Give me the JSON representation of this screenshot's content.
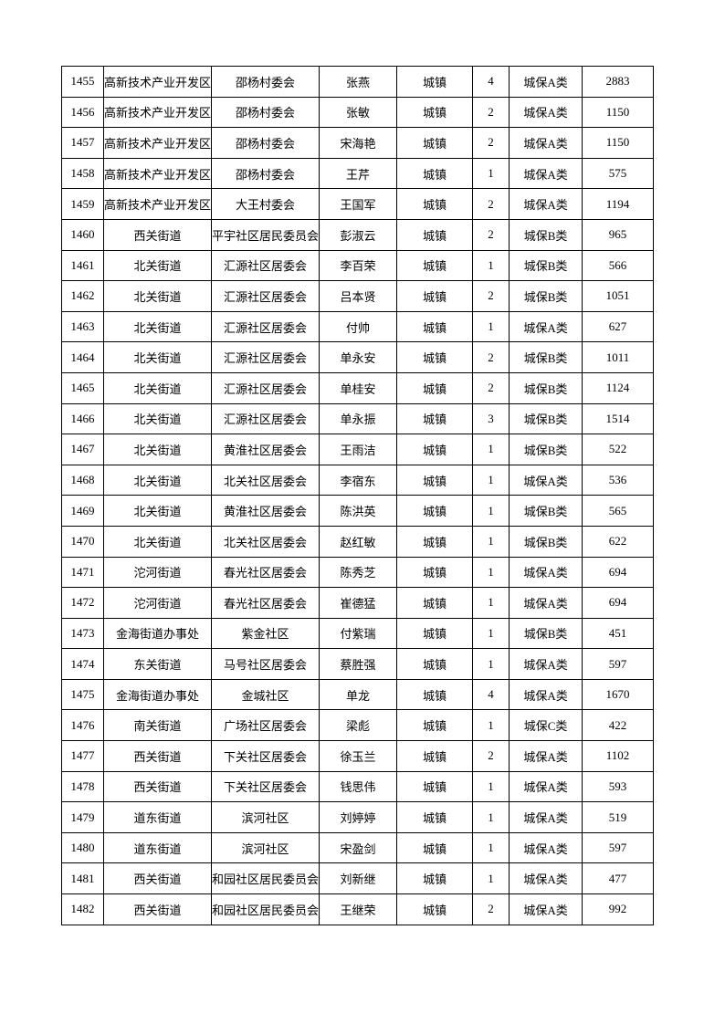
{
  "rows": [
    [
      "1455",
      "高新技术产业开发区",
      "邵杨村委会",
      "张燕",
      "城镇",
      "4",
      "城保A类",
      "2883"
    ],
    [
      "1456",
      "高新技术产业开发区",
      "邵杨村委会",
      "张敏",
      "城镇",
      "2",
      "城保A类",
      "1150"
    ],
    [
      "1457",
      "高新技术产业开发区",
      "邵杨村委会",
      "宋海艳",
      "城镇",
      "2",
      "城保A类",
      "1150"
    ],
    [
      "1458",
      "高新技术产业开发区",
      "邵杨村委会",
      "王芹",
      "城镇",
      "1",
      "城保A类",
      "575"
    ],
    [
      "1459",
      "高新技术产业开发区",
      "大王村委会",
      "王国军",
      "城镇",
      "2",
      "城保A类",
      "1194"
    ],
    [
      "1460",
      "西关街道",
      "平宇社区居民委员会",
      "彭淑云",
      "城镇",
      "2",
      "城保B类",
      "965"
    ],
    [
      "1461",
      "北关街道",
      "汇源社区居委会",
      "李百荣",
      "城镇",
      "1",
      "城保B类",
      "566"
    ],
    [
      "1462",
      "北关街道",
      "汇源社区居委会",
      "吕本贤",
      "城镇",
      "2",
      "城保B类",
      "1051"
    ],
    [
      "1463",
      "北关街道",
      "汇源社区居委会",
      "付帅",
      "城镇",
      "1",
      "城保A类",
      "627"
    ],
    [
      "1464",
      "北关街道",
      "汇源社区居委会",
      "单永安",
      "城镇",
      "2",
      "城保B类",
      "1011"
    ],
    [
      "1465",
      "北关街道",
      "汇源社区居委会",
      "单桂安",
      "城镇",
      "2",
      "城保B类",
      "1124"
    ],
    [
      "1466",
      "北关街道",
      "汇源社区居委会",
      "单永振",
      "城镇",
      "3",
      "城保B类",
      "1514"
    ],
    [
      "1467",
      "北关街道",
      "黄淮社区居委会",
      "王雨洁",
      "城镇",
      "1",
      "城保B类",
      "522"
    ],
    [
      "1468",
      "北关街道",
      "北关社区居委会",
      "李宿东",
      "城镇",
      "1",
      "城保A类",
      "536"
    ],
    [
      "1469",
      "北关街道",
      "黄淮社区居委会",
      "陈洪英",
      "城镇",
      "1",
      "城保B类",
      "565"
    ],
    [
      "1470",
      "北关街道",
      "北关社区居委会",
      "赵红敏",
      "城镇",
      "1",
      "城保B类",
      "622"
    ],
    [
      "1471",
      "沱河街道",
      "春光社区居委会",
      "陈秀芝",
      "城镇",
      "1",
      "城保A类",
      "694"
    ],
    [
      "1472",
      "沱河街道",
      "春光社区居委会",
      "崔德猛",
      "城镇",
      "1",
      "城保A类",
      "694"
    ],
    [
      "1473",
      "金海街道办事处",
      "紫金社区",
      "付紫瑞",
      "城镇",
      "1",
      "城保B类",
      "451"
    ],
    [
      "1474",
      "东关街道",
      "马号社区居委会",
      "蔡胜强",
      "城镇",
      "1",
      "城保A类",
      "597"
    ],
    [
      "1475",
      "金海街道办事处",
      "金城社区",
      "单龙",
      "城镇",
      "4",
      "城保A类",
      "1670"
    ],
    [
      "1476",
      "南关街道",
      "广场社区居委会",
      "梁彪",
      "城镇",
      "1",
      "城保C类",
      "422"
    ],
    [
      "1477",
      "西关街道",
      "下关社区居委会",
      "徐玉兰",
      "城镇",
      "2",
      "城保A类",
      "1102"
    ],
    [
      "1478",
      "西关街道",
      "下关社区居委会",
      "钱思伟",
      "城镇",
      "1",
      "城保A类",
      "593"
    ],
    [
      "1479",
      "道东街道",
      "滨河社区",
      "刘婷婷",
      "城镇",
      "1",
      "城保A类",
      "519"
    ],
    [
      "1480",
      "道东街道",
      "滨河社区",
      "宋盈剑",
      "城镇",
      "1",
      "城保A类",
      "597"
    ],
    [
      "1481",
      "西关街道",
      "和园社区居民委员会",
      "刘新继",
      "城镇",
      "1",
      "城保A类",
      "477"
    ],
    [
      "1482",
      "西关街道",
      "和园社区居民委员会",
      "王继荣",
      "城镇",
      "2",
      "城保A类",
      "992"
    ]
  ]
}
